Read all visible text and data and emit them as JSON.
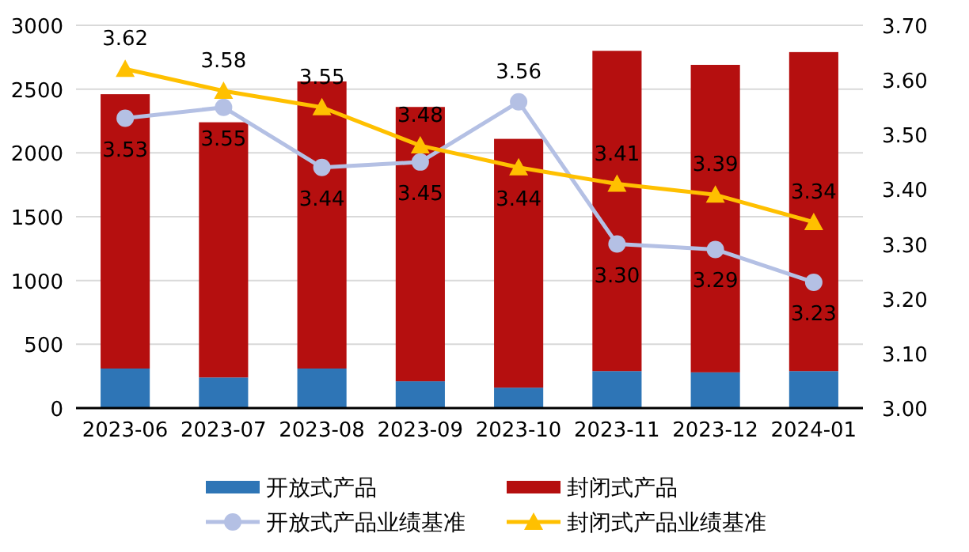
{
  "chart_data": {
    "type": "bar",
    "stacked": true,
    "categories": [
      "2023-06",
      "2023-07",
      "2023-08",
      "2023-09",
      "2023-10",
      "2023-11",
      "2023-12",
      "2024-01"
    ],
    "series": [
      {
        "name": "开放式产品",
        "color": "#2e75b6",
        "values": [
          310,
          240,
          310,
          210,
          160,
          290,
          280,
          290
        ]
      },
      {
        "name": "封闭式产品",
        "color": "#b50f0f",
        "values": [
          2150,
          2000,
          2250,
          2150,
          1950,
          2510,
          2410,
          2500
        ]
      },
      {
        "name": "开放式产品业绩基准",
        "type": "line",
        "axis": "y2",
        "marker": "circle",
        "color": "#b4c0e4",
        "values": [
          3.53,
          3.55,
          3.44,
          3.45,
          3.56,
          3.3,
          3.29,
          3.23
        ],
        "value_labels": [
          "3.53",
          "3.55",
          "3.44",
          "3.45",
          "3.56",
          "3.30",
          "3.29",
          "3.23"
        ]
      },
      {
        "name": "封闭式产品业绩基准",
        "type": "line",
        "axis": "y2",
        "marker": "triangle",
        "color": "#ffc000",
        "values": [
          3.62,
          3.58,
          3.55,
          3.48,
          3.44,
          3.41,
          3.39,
          3.34
        ],
        "value_labels": [
          "3.62",
          "3.58",
          "3.55",
          "3.48",
          "3.44",
          "3.41",
          "3.39",
          "3.34"
        ]
      }
    ],
    "ylim": [
      0,
      3000
    ],
    "yticks": [
      0,
      500,
      1000,
      1500,
      2000,
      2500,
      3000
    ],
    "y2lim": [
      3.0,
      3.7
    ],
    "y2ticks": [
      {
        "value": 3.0,
        "label": "3.00"
      },
      {
        "value": 3.1,
        "label": "3.10"
      },
      {
        "value": 3.2,
        "label": "3.20"
      },
      {
        "value": 3.3,
        "label": "3.30"
      },
      {
        "value": 3.4,
        "label": "3.40"
      },
      {
        "value": 3.5,
        "label": "3.50"
      },
      {
        "value": 3.6,
        "label": "3.60"
      },
      {
        "value": 3.7,
        "label": "3.70"
      }
    ],
    "grid": "y",
    "legend": "bottom",
    "line_style": "solid"
  }
}
